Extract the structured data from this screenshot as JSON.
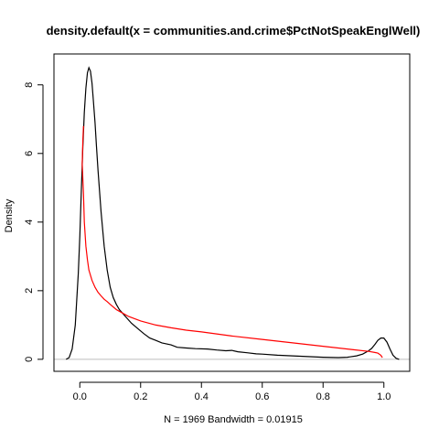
{
  "chart_data": {
    "type": "line",
    "title": "density.default(x = communities.and.crime$PctNotSpeakEnglWell)",
    "xlabel": "N = 1969   Bandwidth = 0.01915",
    "ylabel": "Density",
    "xlim": [
      -0.085,
      1.085
    ],
    "ylim": [
      -0.35,
      8.9
    ],
    "x_ticks": [
      0.0,
      0.2,
      0.4,
      0.6,
      0.8,
      1.0
    ],
    "x_tick_labels": [
      "0.0",
      "0.2",
      "0.4",
      "0.6",
      "0.8",
      "1.0"
    ],
    "y_ticks": [
      0,
      2,
      4,
      6,
      8
    ],
    "y_tick_labels": [
      "0",
      "2",
      "4",
      "6",
      "8"
    ],
    "baseline_y": 0,
    "grid": false,
    "series": [
      {
        "color": "#000000",
        "x": [
          -0.045,
          -0.035,
          -0.025,
          -0.015,
          -0.005,
          0.0,
          0.005,
          0.01,
          0.015,
          0.02,
          0.025,
          0.03,
          0.035,
          0.04,
          0.045,
          0.05,
          0.055,
          0.06,
          0.07,
          0.08,
          0.09,
          0.1,
          0.11,
          0.12,
          0.13,
          0.14,
          0.15,
          0.17,
          0.19,
          0.21,
          0.23,
          0.25,
          0.27,
          0.3,
          0.32,
          0.35,
          0.38,
          0.42,
          0.45,
          0.48,
          0.5,
          0.52,
          0.55,
          0.58,
          0.6,
          0.65,
          0.7,
          0.75,
          0.8,
          0.85,
          0.88,
          0.91,
          0.93,
          0.95,
          0.96,
          0.97,
          0.98,
          0.99,
          1.0,
          1.01,
          1.02,
          1.03,
          1.04,
          1.05
        ],
        "y": [
          0.0,
          0.05,
          0.3,
          1.0,
          2.5,
          3.6,
          4.9,
          6.2,
          7.2,
          7.9,
          8.35,
          8.5,
          8.4,
          8.05,
          7.5,
          6.9,
          6.2,
          5.5,
          4.3,
          3.3,
          2.6,
          2.1,
          1.8,
          1.6,
          1.45,
          1.35,
          1.25,
          1.05,
          0.9,
          0.75,
          0.62,
          0.55,
          0.48,
          0.42,
          0.35,
          0.33,
          0.31,
          0.3,
          0.27,
          0.25,
          0.26,
          0.22,
          0.19,
          0.16,
          0.15,
          0.12,
          0.1,
          0.08,
          0.06,
          0.05,
          0.06,
          0.1,
          0.15,
          0.25,
          0.32,
          0.43,
          0.55,
          0.62,
          0.62,
          0.5,
          0.3,
          0.12,
          0.03,
          0.0
        ]
      },
      {
        "color": "#ff0000",
        "x": [
          0.012,
          0.01,
          0.008,
          0.012,
          0.015,
          0.02,
          0.025,
          0.03,
          0.04,
          0.05,
          0.06,
          0.07,
          0.08,
          0.09,
          0.1,
          0.12,
          0.14,
          0.16,
          0.2,
          0.25,
          0.3,
          0.35,
          0.4,
          0.5,
          0.6,
          0.7,
          0.8,
          0.9,
          0.95,
          0.97,
          0.98,
          0.99,
          0.995
        ],
        "y": [
          6.8,
          6.4,
          5.7,
          4.8,
          4.0,
          3.3,
          2.9,
          2.6,
          2.3,
          2.1,
          1.95,
          1.85,
          1.75,
          1.68,
          1.6,
          1.45,
          1.35,
          1.25,
          1.12,
          1.0,
          0.92,
          0.85,
          0.8,
          0.68,
          0.58,
          0.48,
          0.38,
          0.28,
          0.23,
          0.2,
          0.18,
          0.12,
          0.05
        ]
      }
    ]
  }
}
